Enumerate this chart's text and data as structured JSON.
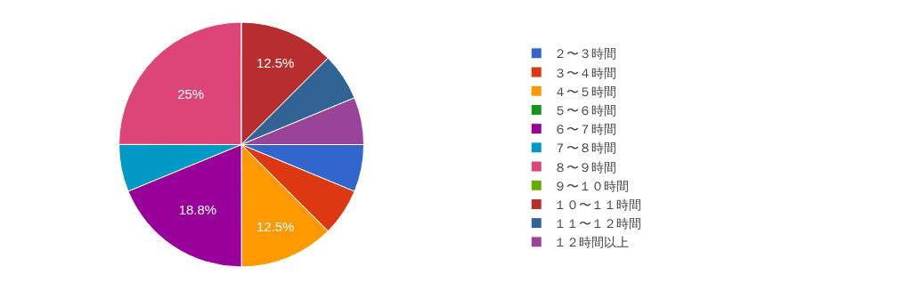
{
  "chart_data": {
    "type": "pie",
    "categories": [
      "２〜３時間",
      "３〜４時間",
      "４〜５時間",
      "５〜６時間",
      "６〜７時間",
      "７〜８時間",
      "８〜９時間",
      "９〜１０時間",
      "１０〜１１時間",
      "１１〜１２時間",
      "１２時間以上"
    ],
    "values": [
      6.25,
      6.25,
      12.5,
      0,
      18.8,
      6.25,
      25,
      0,
      12.5,
      6.25,
      6.25
    ],
    "colors": [
      "#3366cc",
      "#dc3912",
      "#ff9900",
      "#109618",
      "#990099",
      "#0099c6",
      "#dd4477",
      "#66aa00",
      "#b82e2e",
      "#316395",
      "#994499"
    ],
    "value_labels": [
      null,
      null,
      "12.5%",
      null,
      "18.8%",
      null,
      "25%",
      null,
      "12.5%",
      null,
      null
    ],
    "legend": "right"
  }
}
